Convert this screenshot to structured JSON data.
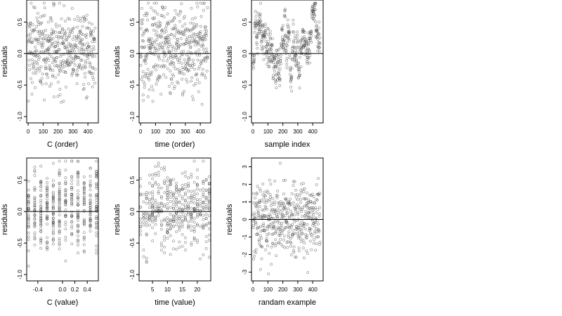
{
  "chart_data": [
    {
      "type": "scatter",
      "panel": "top-left",
      "xlabel": "C (order)",
      "ylabel": "residuals",
      "xlim": [
        -10,
        470
      ],
      "ylim": [
        -1.1,
        0.85
      ],
      "xticks": [
        0,
        100,
        200,
        300,
        400
      ],
      "xtick_labels": [
        "0",
        "100",
        "200",
        "300",
        "400"
      ],
      "yticks": [
        -1.0,
        -0.5,
        0.0,
        0.5
      ],
      "ytick_labels": [
        "-1.0",
        "-0.5",
        "0.0",
        "0.5"
      ],
      "hline": 0,
      "pattern": "index",
      "n": 450,
      "y_range": [
        -1.05,
        0.8
      ]
    },
    {
      "type": "scatter",
      "panel": "top-middle",
      "xlabel": "time (order)",
      "ylabel": "residuals",
      "xlim": [
        -10,
        470
      ],
      "ylim": [
        -1.1,
        0.85
      ],
      "xticks": [
        0,
        100,
        200,
        300,
        400
      ],
      "xtick_labels": [
        "0",
        "100",
        "200",
        "300",
        "400"
      ],
      "yticks": [
        -1.0,
        -0.5,
        0.0,
        0.5
      ],
      "ytick_labels": [
        "-1.0",
        "-0.5",
        "0.0",
        "0.5"
      ],
      "hline": 0,
      "pattern": "index",
      "n": 450,
      "y_range": [
        -1.05,
        0.8
      ]
    },
    {
      "type": "scatter",
      "panel": "top-right",
      "xlabel": "sample index",
      "ylabel": "residuals",
      "xlim": [
        -10,
        470
      ],
      "ylim": [
        -1.1,
        0.85
      ],
      "xticks": [
        0,
        100,
        200,
        300,
        400
      ],
      "xtick_labels": [
        "0",
        "100",
        "200",
        "300",
        "400"
      ],
      "yticks": [
        -1.0,
        -0.5,
        0.0,
        0.5
      ],
      "ytick_labels": [
        "-1.0",
        "-0.5",
        "0.0",
        "0.5"
      ],
      "hline": 0,
      "pattern": "autocorrelated",
      "n": 450,
      "y_range": [
        -1.05,
        0.8
      ]
    },
    {
      "type": "scatter",
      "panel": "bottom-left",
      "xlabel": "C (value)",
      "ylabel": "residuals",
      "xlim": [
        -0.58,
        0.58
      ],
      "ylim": [
        -1.1,
        0.85
      ],
      "xticks": [
        -0.4,
        0.0,
        0.2,
        0.4
      ],
      "xtick_labels": [
        "-0.4",
        "0.0",
        "0.2",
        "0.4"
      ],
      "yticks": [
        -1.0,
        -0.5,
        0.0,
        0.5
      ],
      "ytick_labels": [
        "-1.0",
        "-0.5",
        "0.0",
        "0.5"
      ],
      "hline": 0,
      "pattern": "discrete",
      "x_levels": [
        -0.55,
        -0.45,
        -0.35,
        -0.25,
        -0.15,
        -0.05,
        0.05,
        0.15,
        0.25,
        0.35,
        0.45,
        0.55
      ],
      "n": 450,
      "y_range": [
        -1.05,
        0.8
      ]
    },
    {
      "type": "scatter",
      "panel": "bottom-middle",
      "xlabel": "time (value)",
      "ylabel": "residuals",
      "xlim": [
        0.5,
        24.5
      ],
      "ylim": [
        -1.1,
        0.85
      ],
      "xticks": [
        5,
        10,
        15,
        20
      ],
      "xtick_labels": [
        "5",
        "10",
        "15",
        "20"
      ],
      "yticks": [
        -1.0,
        -0.5,
        0.0,
        0.5
      ],
      "ytick_labels": [
        "-1.0",
        "-0.5",
        "0.0",
        "0.5"
      ],
      "hline": 0,
      "pattern": "discrete",
      "x_levels": [
        1,
        2,
        3,
        4,
        5,
        6,
        7,
        8,
        9,
        10,
        11,
        12,
        13,
        14,
        15,
        16,
        17,
        18,
        19,
        20,
        21,
        22,
        23,
        24
      ],
      "n": 450,
      "y_range": [
        -1.05,
        0.8
      ]
    },
    {
      "type": "scatter",
      "panel": "bottom-right",
      "xlabel": "randam example",
      "ylabel": "residuals",
      "xlim": [
        -10,
        470
      ],
      "ylim": [
        -3.5,
        3.5
      ],
      "xticks": [
        0,
        100,
        200,
        300,
        400
      ],
      "xtick_labels": [
        "0",
        "100",
        "200",
        "300",
        "400"
      ],
      "yticks": [
        -3,
        -2,
        -1,
        0,
        1,
        2,
        3
      ],
      "ytick_labels": [
        "-3",
        "-2",
        "-1",
        "0",
        "1",
        "2",
        "3"
      ],
      "hline": 0,
      "pattern": "normal",
      "n": 450,
      "y_range": [
        -3.2,
        3.2
      ]
    }
  ]
}
